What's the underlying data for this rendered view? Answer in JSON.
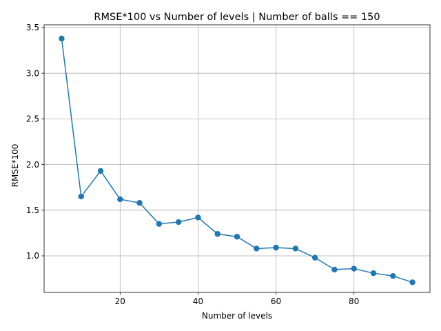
{
  "chart_data": {
    "type": "line",
    "title": "RMSE*100 vs Number of levels | Number of balls == 150",
    "xlabel": "Number of levels",
    "ylabel": "RMSE*100",
    "xlim": [
      0.5,
      99.5
    ],
    "ylim": [
      0.6,
      3.53
    ],
    "xticks": [
      20,
      40,
      60,
      80
    ],
    "yticks": [
      1.0,
      1.5,
      2.0,
      2.5,
      3.0,
      3.5
    ],
    "xtick_labels": [
      "20",
      "40",
      "60",
      "80"
    ],
    "ytick_labels": [
      "1.0",
      "1.5",
      "2.0",
      "2.5",
      "3.0",
      "3.5"
    ],
    "grid": true,
    "color": "#1f77b4",
    "marker": "circle",
    "series": [
      {
        "x": [
          5,
          10,
          15,
          20,
          25,
          30,
          35,
          40,
          45,
          50,
          55,
          60,
          65,
          70,
          75,
          80,
          85,
          90,
          95
        ],
        "y": [
          3.38,
          1.65,
          1.93,
          1.62,
          1.58,
          1.35,
          1.37,
          1.42,
          1.24,
          1.21,
          1.08,
          1.09,
          1.08,
          0.98,
          0.85,
          0.86,
          0.81,
          0.78,
          0.71
        ]
      }
    ]
  }
}
